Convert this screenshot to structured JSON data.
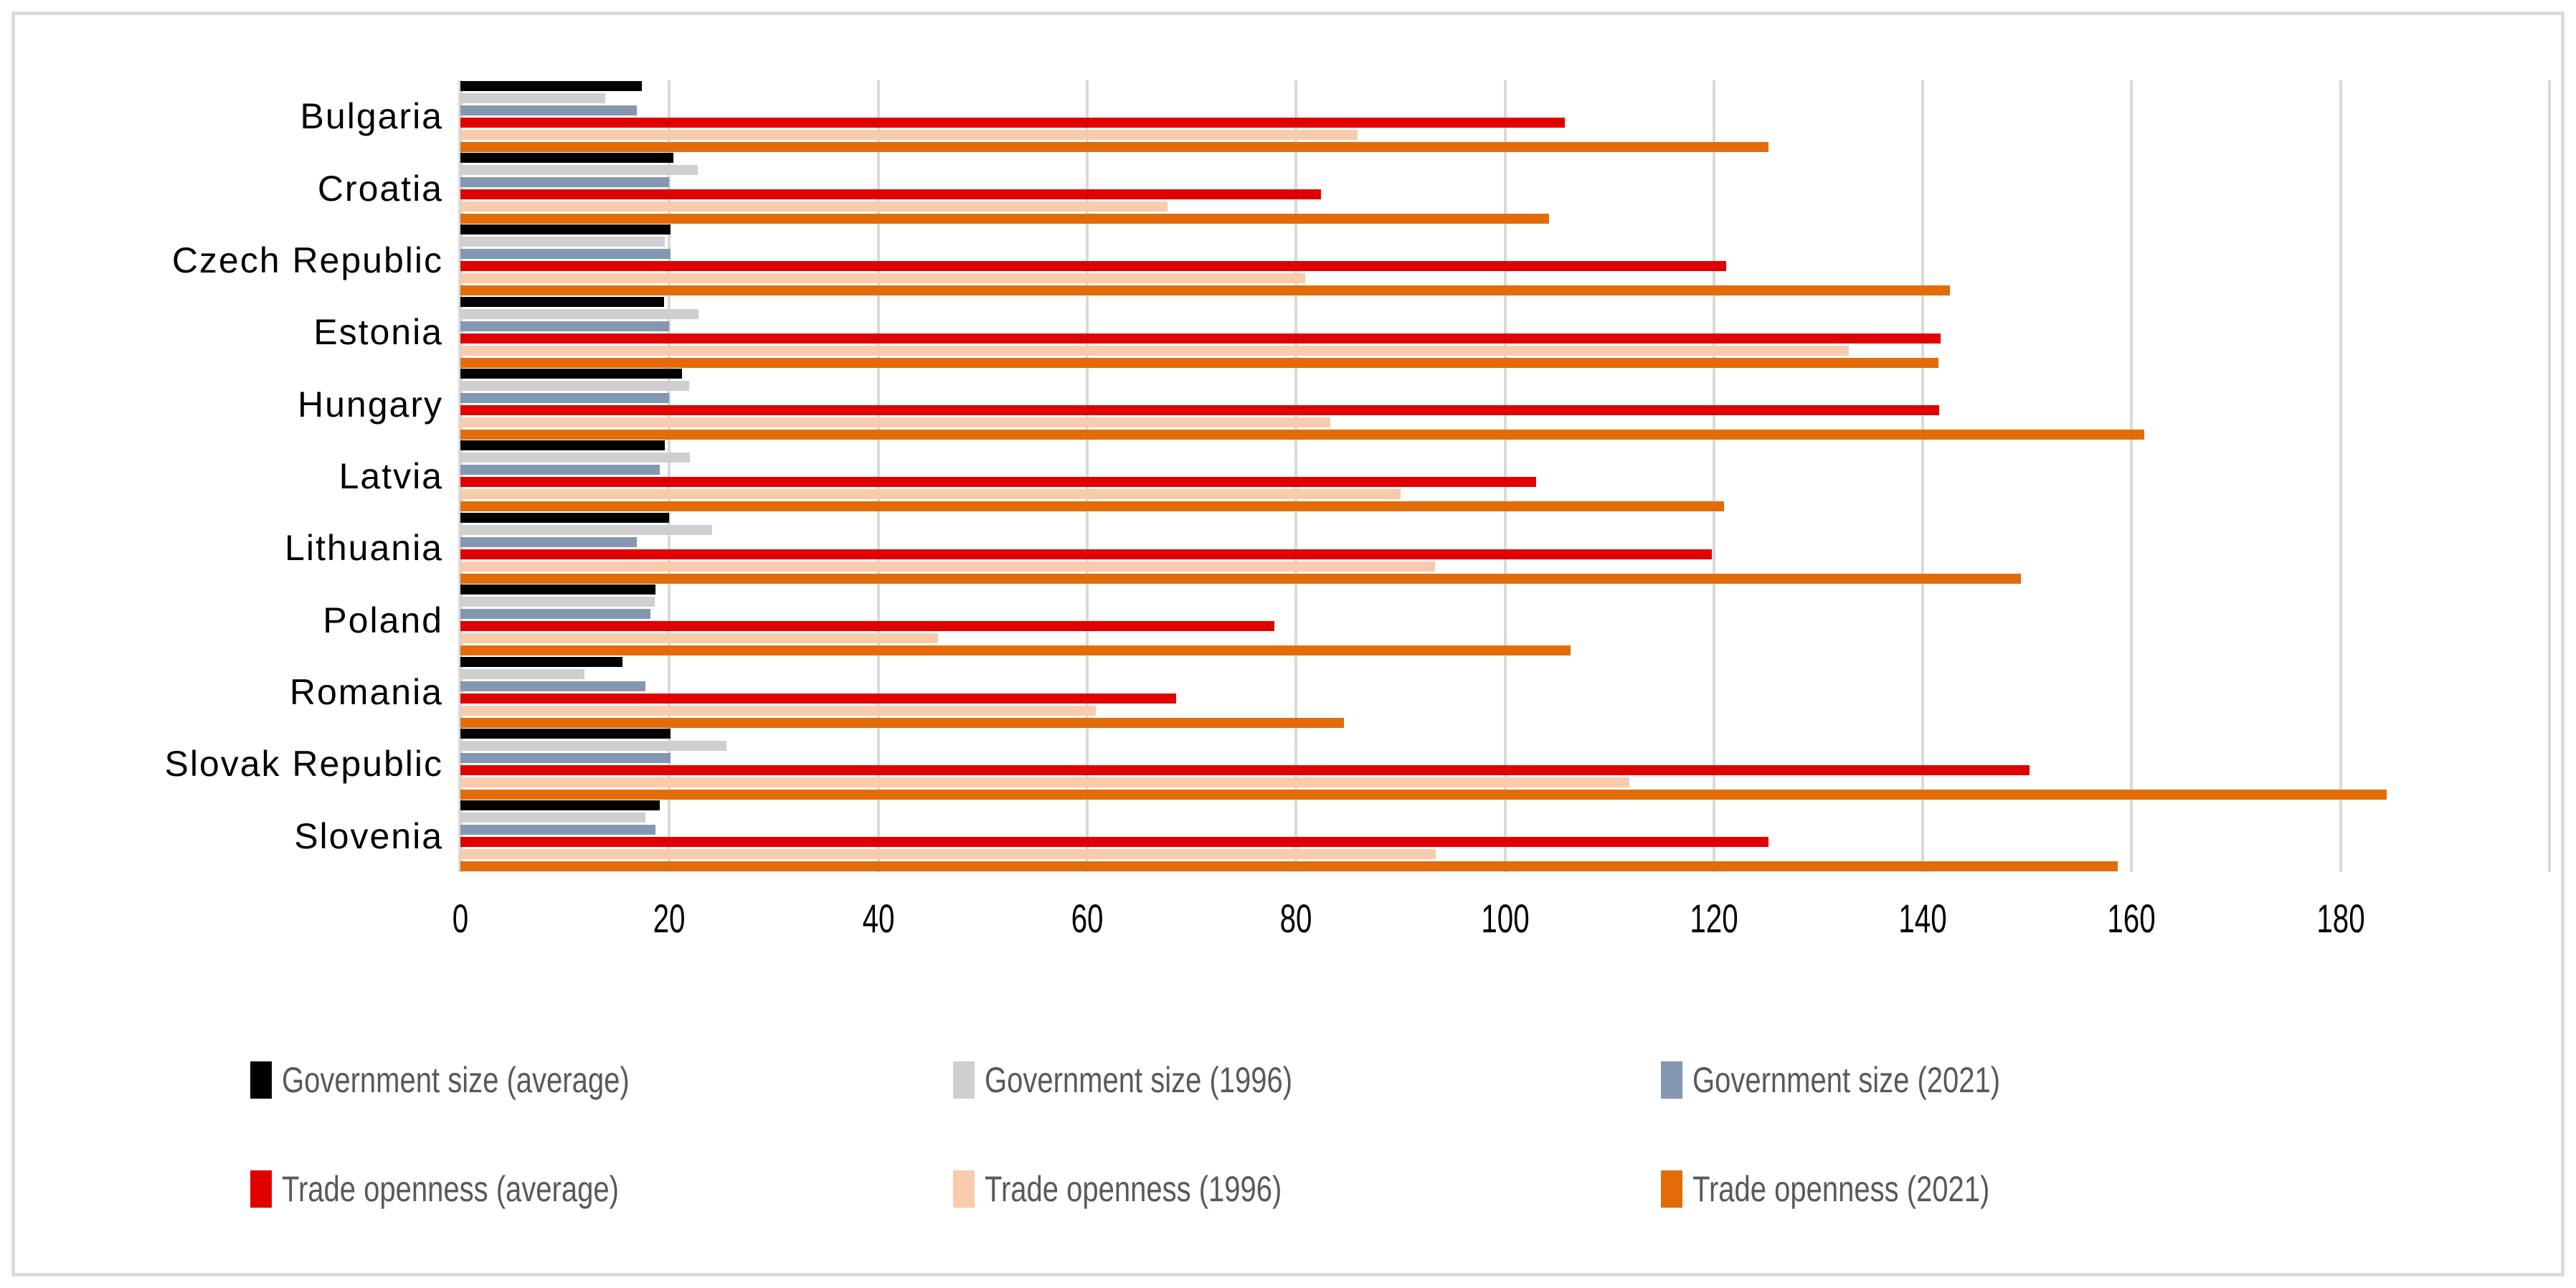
{
  "chart_data": {
    "type": "bar",
    "orientation": "horizontal",
    "title": "",
    "xlabel": "",
    "ylabel": "",
    "categories": [
      "Bulgaria",
      "Croatia",
      "Czech Republic",
      "Estonia",
      "Hungary",
      "Latvia",
      "Lithuania",
      "Poland",
      "Romania",
      "Slovak Republic",
      "Slovenia"
    ],
    "series": [
      {
        "name": "Government size (average)",
        "color": "#000000",
        "values": [
          17.4,
          20.4,
          20.1,
          19.5,
          21.2,
          19.6,
          20.0,
          18.7,
          15.5,
          20.1,
          19.1
        ]
      },
      {
        "name": "Government size (1996)",
        "color": "#d0cece",
        "values": [
          13.9,
          22.7,
          19.6,
          22.8,
          21.9,
          22.0,
          24.1,
          18.6,
          11.9,
          25.5,
          17.7
        ]
      },
      {
        "name": "Government size (2021)",
        "color": "#8497b0",
        "values": [
          16.9,
          20.0,
          20.1,
          20.0,
          20.0,
          19.1,
          16.9,
          18.2,
          17.7,
          20.1,
          18.7
        ]
      },
      {
        "name": "Trade openness (average)",
        "color": "#e00000",
        "values": [
          105.7,
          82.4,
          121.2,
          141.7,
          141.6,
          103.0,
          119.8,
          77.9,
          68.5,
          150.2,
          125.2
        ]
      },
      {
        "name": "Trade openness (1996)",
        "color": "#f8cbad",
        "values": [
          85.9,
          67.7,
          80.9,
          132.9,
          83.3,
          90.0,
          93.3,
          45.7,
          60.8,
          111.9,
          93.4
        ]
      },
      {
        "name": "Trade openness (2021)",
        "color": "#e36c09",
        "values": [
          125.2,
          104.2,
          142.6,
          141.5,
          161.2,
          121.0,
          149.4,
          106.3,
          84.6,
          184.4,
          158.7
        ]
      }
    ],
    "xlim": [
      0,
      200
    ],
    "xticks": [
      "0",
      "20",
      "40",
      "60",
      "80",
      "100",
      "120",
      "140",
      "160",
      "180"
    ],
    "xtick_values": [
      0,
      20,
      40,
      60,
      80,
      100,
      120,
      140,
      160,
      180
    ],
    "grid": true,
    "gridline_color": "#d9d9d9",
    "legend_position": "bottom",
    "legend_text_color": "#595959",
    "frame_border_color": "#dcdcdc"
  },
  "legend_layout": {
    "column_lefts": [
      349,
      1329,
      2316
    ],
    "row_tops": [
      1480,
      1632
    ]
  }
}
